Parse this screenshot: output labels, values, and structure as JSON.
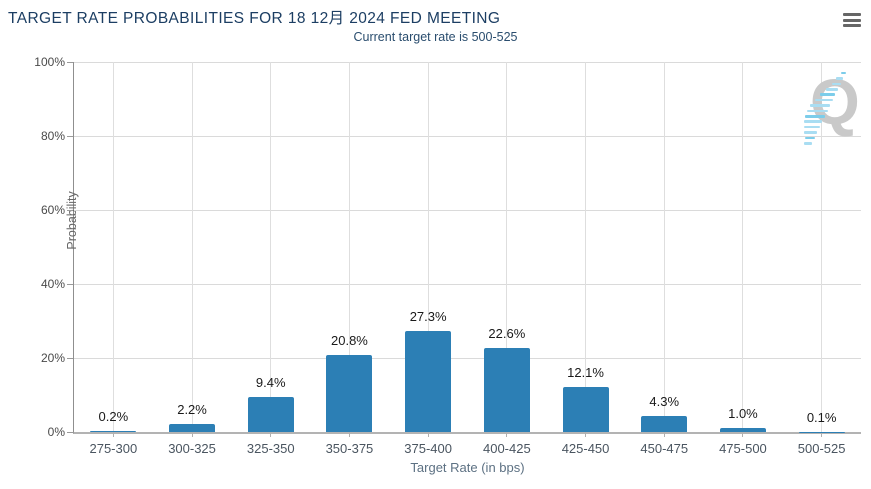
{
  "header": {
    "title": "TARGET RATE PROBABILITIES FOR 18 12月 2024 FED MEETING",
    "subtitle": "Current target rate is 500-525"
  },
  "menu": {
    "icon": "hamburger-menu-icon"
  },
  "watermark": {
    "letter": "Q"
  },
  "colors": {
    "bar": "#2c7fb5",
    "title": "#1c3e63",
    "subtitle": "#2a4d6e",
    "gridline": "#dadada",
    "axis_line": "#b3b3b3",
    "data_label": "#1a1a1a",
    "watermark_gray": "#c9c9c9",
    "watermark_blue": "#a9ddf2",
    "menu_icon": "#666666"
  },
  "chart_data": {
    "type": "bar",
    "title": "TARGET RATE PROBABILITIES FOR 18 12月 2024 FED MEETING",
    "subtitle": "Current target rate is 500-525",
    "categories": [
      "275-300",
      "300-325",
      "325-350",
      "350-375",
      "375-400",
      "400-425",
      "425-450",
      "450-475",
      "475-500",
      "500-525"
    ],
    "values": [
      0.2,
      2.2,
      9.4,
      20.8,
      27.3,
      22.6,
      12.1,
      4.3,
      1.0,
      0.1
    ],
    "value_labels": [
      "0.2%",
      "2.2%",
      "9.4%",
      "20.8%",
      "27.3%",
      "22.6%",
      "12.1%",
      "4.3%",
      "1.0%",
      "0.1%"
    ],
    "xlabel": "Target Rate (in bps)",
    "ylabel": "Probability",
    "ylim": [
      0,
      100
    ],
    "yticks": [
      0,
      20,
      40,
      60,
      80,
      100
    ],
    "ytick_labels": [
      "0%",
      "20%",
      "40%",
      "60%",
      "80%",
      "100%"
    ],
    "grid": true,
    "legend": false,
    "bar_color": "#2c7fb5"
  }
}
